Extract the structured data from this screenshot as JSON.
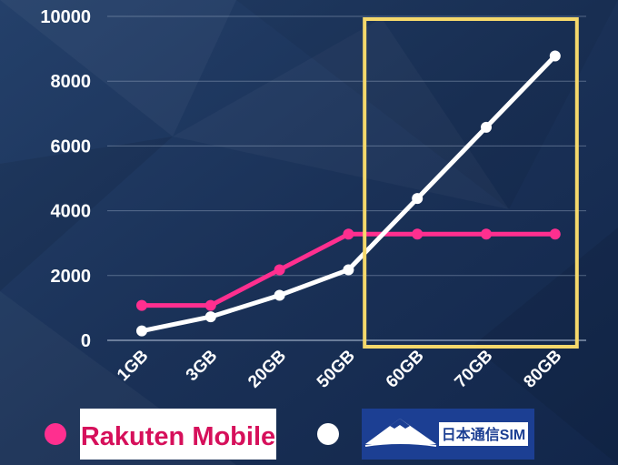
{
  "chart_data": {
    "type": "line",
    "categories": [
      "1GB",
      "3GB",
      "20GB",
      "50GB",
      "60GB",
      "70GB",
      "80GB"
    ],
    "series": [
      {
        "name": "Rakuten Mobile",
        "color": "#ff2f8f",
        "values": [
          1078,
          1078,
          2178,
          3278,
          3278,
          3278,
          3278
        ]
      },
      {
        "name": "日本通信SIM",
        "color": "#ffffff",
        "values": [
          290,
          728,
          1390,
          2178,
          4378,
          6578,
          8778
        ]
      }
    ],
    "yticks": [
      "0",
      "2000",
      "4000",
      "6000",
      "8000",
      "10000"
    ],
    "ylim": [
      0,
      10000
    ],
    "grid": true,
    "highlight": {
      "from": "60GB",
      "to": "80GB",
      "color": "#f5d86b"
    },
    "legend": {
      "position": "bottom",
      "items": [
        {
          "logo_text": "Rakuten Mobile",
          "marker_color": "#ff2f8f",
          "logo_background": "#ffffff"
        },
        {
          "logo_text": "日本通信SIM",
          "marker_color": "#ffffff",
          "logo_background": "#1c3f93"
        }
      ]
    }
  }
}
